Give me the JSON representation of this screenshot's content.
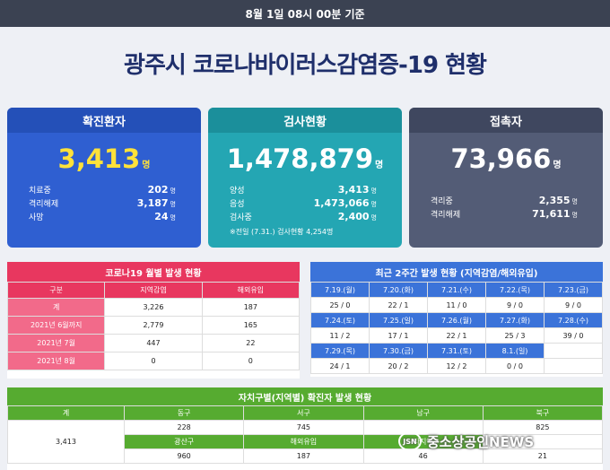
{
  "header": {
    "timestamp": "8월 1일 08시 00분 기준"
  },
  "title": "광주시 코로나바이러스감염증-19 현황",
  "cards": {
    "confirmed": {
      "label": "확진환자",
      "value": "3,413",
      "unit": "명",
      "rows": [
        {
          "label": "치료중",
          "value": "202",
          "unit": "명"
        },
        {
          "label": "격리해제",
          "value": "3,187",
          "unit": "명"
        },
        {
          "label": "사망",
          "value": "24",
          "unit": "명"
        }
      ]
    },
    "tests": {
      "label": "검사현황",
      "value": "1,478,879",
      "unit": "명",
      "rows": [
        {
          "label": "양성",
          "value": "3,413",
          "unit": "명"
        },
        {
          "label": "음성",
          "value": "1,473,066",
          "unit": "명"
        },
        {
          "label": "검사중",
          "value": "2,400",
          "unit": "명"
        }
      ],
      "note": "※전일 (7.31.) 검사현황 4,254명"
    },
    "contacts": {
      "label": "접촉자",
      "value": "73,966",
      "unit": "명",
      "rows": [
        {
          "label": "격리중",
          "value": "2,355",
          "unit": "명"
        },
        {
          "label": "격리해제",
          "value": "71,611",
          "unit": "명"
        }
      ]
    }
  },
  "monthly": {
    "title": "코로나19 월별 발생 현황",
    "headers": [
      "구분",
      "지역감염",
      "해외유입"
    ],
    "rows": [
      {
        "label": "계",
        "local": "3,226",
        "overseas": "187"
      },
      {
        "label": "2021년 6월까지",
        "local": "2,779",
        "overseas": "165"
      },
      {
        "label": "2021년 7월",
        "local": "447",
        "overseas": "22"
      },
      {
        "label": "2021년 8월",
        "local": "0",
        "overseas": "0"
      }
    ]
  },
  "recent": {
    "title": "최근 2주간 발생 현황 (지역감염/해외유입)",
    "weeks": [
      {
        "dates": [
          "7.19.(월)",
          "7.20.(화)",
          "7.21.(수)",
          "7.22.(목)",
          "7.23.(금)"
        ],
        "values": [
          "25 / 0",
          "22 / 1",
          "11 / 0",
          "9 / 0",
          "9 / 0"
        ]
      },
      {
        "dates": [
          "7.24.(토)",
          "7.25.(일)",
          "7.26.(월)",
          "7.27.(화)",
          "7.28.(수)"
        ],
        "values": [
          "11 / 2",
          "17 / 1",
          "22 / 1",
          "25 / 3",
          "39 / 0"
        ]
      },
      {
        "dates": [
          "7.29.(목)",
          "7.30.(금)",
          "7.31.(토)",
          "8.1.(일)",
          ""
        ],
        "values": [
          "24 / 1",
          "20 / 2",
          "12 / 2",
          "0 / 0",
          ""
        ]
      }
    ]
  },
  "district": {
    "title": "자치구별(지역별) 확진자 발생 현황",
    "total_label": "계",
    "total_value": "3,413",
    "row1_headers": [
      "동구",
      "서구",
      "남구",
      "북구"
    ],
    "row1_values": [
      "228",
      "745",
      "",
      "825"
    ],
    "row2_headers": [
      "광산구",
      "해외유입",
      "타지역",
      ""
    ],
    "row2_values": [
      "960",
      "187",
      "46",
      "21"
    ]
  },
  "watermark": {
    "logo": "JSN",
    "text": "중소상공인NEWS"
  }
}
